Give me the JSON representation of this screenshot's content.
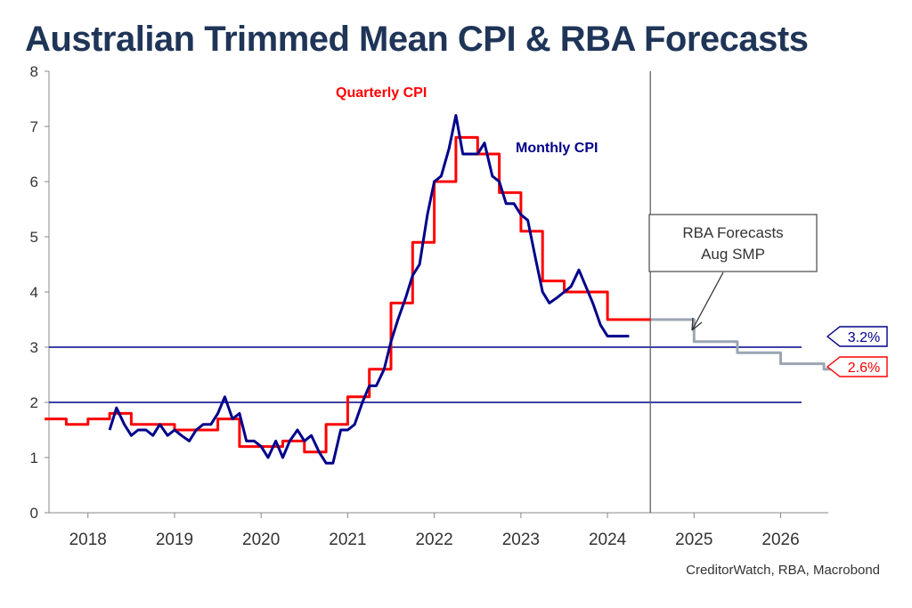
{
  "chart_data": {
    "type": "line",
    "title": "Australian Trimmed Mean CPI & RBA Forecasts",
    "xlabel": "",
    "ylabel": "",
    "source": "CreditorWatch, RBA, Macrobond",
    "ylim": [
      0,
      8
    ],
    "xlim": [
      2017.55,
      2026.55
    ],
    "y_ticks": [
      "0",
      "1",
      "2",
      "3",
      "4",
      "5",
      "6",
      "7",
      "8"
    ],
    "x_ticks": [
      "2018",
      "2019",
      "2020",
      "2021",
      "2022",
      "2023",
      "2024",
      "2025",
      "2026"
    ],
    "grid": false,
    "reference_lines": [
      3,
      2
    ],
    "vertical_marker": 2024.5,
    "annotations": {
      "quarterly": "Quarterly CPI",
      "monthly": "Monthly CPI",
      "forecast_box_line1": "RBA Forecasts",
      "forecast_box_line2": "Aug SMP",
      "label_monthly": "3.2%",
      "label_quarterly": "2.6%"
    },
    "colors": {
      "quarterly": "#ff0000",
      "monthly": "#00008b",
      "forecast": "#9aa6b2",
      "ref_line": "#00008b",
      "title": "#1f3558"
    },
    "series": [
      {
        "name": "Quarterly CPI",
        "step": true,
        "x": [
          2017.5,
          2017.75,
          2018.0,
          2018.25,
          2018.5,
          2018.75,
          2019.0,
          2019.25,
          2019.5,
          2019.75,
          2020.0,
          2020.25,
          2020.5,
          2020.75,
          2021.0,
          2021.25,
          2021.5,
          2021.75,
          2022.0,
          2022.25,
          2022.5,
          2022.75,
          2023.0,
          2023.25,
          2023.5,
          2023.75,
          2024.0,
          2024.25,
          2024.5
        ],
        "values": [
          1.7,
          1.6,
          1.7,
          1.8,
          1.6,
          1.6,
          1.5,
          1.5,
          1.7,
          1.2,
          1.2,
          1.3,
          1.1,
          1.6,
          2.1,
          2.6,
          3.8,
          4.9,
          6.0,
          6.8,
          6.5,
          5.8,
          5.1,
          4.2,
          4.0,
          4.0,
          3.5,
          3.5,
          3.5
        ]
      },
      {
        "name": "Monthly CPI",
        "step": false,
        "x": [
          2018.25,
          2018.33,
          2018.42,
          2018.5,
          2018.58,
          2018.67,
          2018.75,
          2018.83,
          2018.92,
          2019.0,
          2019.08,
          2019.17,
          2019.25,
          2019.33,
          2019.42,
          2019.5,
          2019.58,
          2019.67,
          2019.75,
          2019.83,
          2019.92,
          2020.0,
          2020.08,
          2020.17,
          2020.25,
          2020.33,
          2020.42,
          2020.5,
          2020.58,
          2020.67,
          2020.75,
          2020.83,
          2020.92,
          2021.0,
          2021.08,
          2021.17,
          2021.25,
          2021.33,
          2021.42,
          2021.5,
          2021.58,
          2021.67,
          2021.75,
          2021.83,
          2021.92,
          2022.0,
          2022.08,
          2022.17,
          2022.25,
          2022.33,
          2022.42,
          2022.5,
          2022.58,
          2022.67,
          2022.75,
          2022.83,
          2022.92,
          2023.0,
          2023.08,
          2023.17,
          2023.25,
          2023.33,
          2023.42,
          2023.5,
          2023.58,
          2023.67,
          2023.75,
          2023.83,
          2023.92,
          2024.0,
          2024.08,
          2024.17,
          2024.25
        ],
        "values": [
          1.5,
          1.9,
          1.6,
          1.4,
          1.5,
          1.5,
          1.4,
          1.6,
          1.4,
          1.5,
          1.4,
          1.3,
          1.5,
          1.6,
          1.6,
          1.8,
          2.1,
          1.7,
          1.8,
          1.3,
          1.3,
          1.2,
          1.0,
          1.3,
          1.0,
          1.3,
          1.5,
          1.3,
          1.4,
          1.1,
          0.9,
          0.9,
          1.5,
          1.5,
          1.6,
          2.0,
          2.3,
          2.3,
          2.6,
          3.1,
          3.5,
          3.9,
          4.3,
          4.5,
          5.4,
          6.0,
          6.1,
          6.6,
          7.2,
          6.5,
          6.5,
          6.5,
          6.7,
          6.1,
          6.0,
          5.6,
          5.6,
          5.4,
          5.3,
          4.6,
          4.0,
          3.8,
          3.9,
          4.0,
          4.1,
          4.4,
          4.1,
          3.8,
          3.4,
          3.2,
          3.2,
          3.2,
          3.2
        ]
      },
      {
        "name": "RBA Forecasts",
        "step": true,
        "x": [
          2024.5,
          2024.75,
          2025.0,
          2025.25,
          2025.5,
          2025.75,
          2026.0,
          2026.25,
          2026.5
        ],
        "values": [
          3.5,
          3.5,
          3.1,
          3.1,
          2.9,
          2.9,
          2.7,
          2.7,
          2.6
        ]
      }
    ]
  }
}
